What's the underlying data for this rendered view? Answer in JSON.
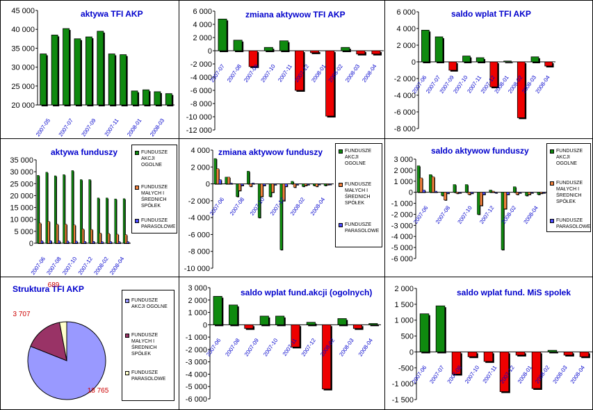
{
  "colors": {
    "green": "#0f8a0f",
    "red": "#ee0000",
    "orange": "#f0803c",
    "blue": "#4d4dff",
    "periwinkle": "#9999ff",
    "maroon": "#993366",
    "cream": "#ffffcc",
    "title": "#0000cc",
    "date": "#0000cc"
  },
  "fund_legend": [
    "FUNDUSZE\nAKCJI\nOGOLNE",
    "FUNDUSZE\nMAŁYCH I\nŚREDNICH\nSPÓŁEK",
    "FUNDUSZE\nPARASOLOWE"
  ],
  "pie_legend": [
    "FUNDUSZE\nAKCJI OGOLNE",
    "FUNDUSZE\nMAŁYCH I\nŚREDNICH\nSPÓŁEK",
    "FUNDUSZE\nPARASOLOWE"
  ],
  "chart_data": [
    {
      "id": "c1",
      "type": "bar",
      "title": "aktywa TFI AKP",
      "ylim": [
        20000,
        45000
      ],
      "yticks": [
        "20 000",
        "25 000",
        "30 000",
        "35 000",
        "40 000",
        "45 000"
      ],
      "ytick_values": [
        20000,
        25000,
        30000,
        35000,
        40000,
        45000
      ],
      "xlabels": [
        "2007-05",
        "2007-07",
        "2007-09",
        "2007-11",
        "2008-01",
        "2008-03"
      ],
      "series": [
        {
          "name": "aktywa",
          "values": [
            33500,
            38500,
            40200,
            37500,
            38000,
            39500,
            33500,
            33300,
            23700,
            24000,
            23500,
            23000
          ]
        }
      ]
    },
    {
      "id": "c2",
      "type": "bar",
      "title": "zmiana aktywow TFI AKP",
      "ylim": [
        -12000,
        6000
      ],
      "yticks": [
        "-12 000",
        "-10 000",
        "-8 000",
        "-6 000",
        "-4 000",
        "-2 000",
        "0",
        "2 000",
        "4 000",
        "6 000"
      ],
      "ytick_values": [
        -12000,
        -10000,
        -8000,
        -6000,
        -4000,
        -2000,
        0,
        2000,
        4000,
        6000
      ],
      "xlabels": [
        "2007-07",
        "2007-08",
        "2007-09",
        "2007-10",
        "2007-11",
        "2007-12",
        "2008-01",
        "2008-02",
        "2008-03",
        "2008-04"
      ],
      "series": [
        {
          "name": "zmiana",
          "values": [
            4800,
            1600,
            -2400,
            500,
            1500,
            -6000,
            -300,
            -9900,
            500,
            -500,
            -500
          ]
        }
      ]
    },
    {
      "id": "c3",
      "type": "bar",
      "title": "saldo wplat TFI AKP",
      "ylim": [
        -8000,
        6000
      ],
      "yticks": [
        "-8 000",
        "-6 000",
        "-4 000",
        "-2 000",
        "0",
        "2 000",
        "4 000",
        "6 000"
      ],
      "ytick_values": [
        -8000,
        -6000,
        -4000,
        -2000,
        0,
        2000,
        4000,
        6000
      ],
      "xlabels": [
        "2007-06",
        "2007-07",
        "2007-09",
        "2007-10",
        "2007-11",
        "2007-12",
        "2008-01",
        "2008-02",
        "2008-03",
        "2008-04"
      ],
      "series": [
        {
          "name": "saldo",
          "values": [
            3800,
            3000,
            -1000,
            700,
            500,
            -3000,
            100,
            -6700,
            600,
            -500
          ]
        }
      ]
    },
    {
      "id": "c4",
      "type": "groupbar",
      "title": "aktywa funduszy",
      "ylim": [
        0,
        35000
      ],
      "yticks": [
        "0",
        "5 000",
        "10 000",
        "15 000",
        "20 000",
        "25 000",
        "30 000",
        "35 000"
      ],
      "ytick_values": [
        0,
        5000,
        10000,
        15000,
        20000,
        25000,
        30000,
        35000
      ],
      "xlabels": [
        "2007-06",
        "2007-08",
        "2007-10",
        "2007-12",
        "2008-02",
        "2008-04"
      ],
      "series": [
        {
          "name": "FUNDUSZE AKCJI OGOLNE",
          "values": [
            28500,
            29800,
            28300,
            28800,
            30500,
            26700,
            26700,
            19000,
            19000,
            18600,
            18700
          ]
        },
        {
          "name": "FUNDUSZE MAŁYCH I ŚREDNICH SPÓŁEK",
          "values": [
            8500,
            9200,
            8000,
            8000,
            7700,
            6000,
            5800,
            4300,
            4100,
            3800,
            3600
          ]
        },
        {
          "name": "FUNDUSZE PARASOLOWE",
          "values": [
            1000,
            1100,
            1000,
            900,
            900,
            800,
            800,
            700,
            700,
            700,
            700
          ]
        }
      ]
    },
    {
      "id": "c5",
      "type": "groupbar",
      "title": "zmiana aktywow funduszy",
      "ylim": [
        -10000,
        4000
      ],
      "yticks": [
        "-10 000",
        "-8 000",
        "-6 000",
        "-4 000",
        "-2 000",
        "0",
        "2 000",
        "4 000"
      ],
      "ytick_values": [
        -10000,
        -8000,
        -6000,
        -4000,
        -2000,
        0,
        2000,
        4000
      ],
      "xlabels": [
        "2007-06",
        "2007-08",
        "2007-10",
        "2007-12",
        "2008-02",
        "2008-04"
      ],
      "series": [
        {
          "name": "FUNDUSZE AKCJI OGOLNE",
          "values": [
            3000,
            800,
            -1500,
            1500,
            -4000,
            -1500,
            -7800,
            300,
            -300,
            -200,
            -200
          ]
        },
        {
          "name": "FUNDUSZE MAŁYCH I ŚREDNICH SPÓŁEK",
          "values": [
            1800,
            800,
            -800,
            -300,
            -1500,
            -1000,
            -2000,
            -400,
            -200,
            -300,
            -100
          ]
        },
        {
          "name": "FUNDUSZE PARASOLOWE",
          "values": [
            500,
            100,
            -200,
            100,
            -200,
            -100,
            -300,
            -100,
            -100,
            -50,
            -50
          ]
        }
      ]
    },
    {
      "id": "c6",
      "type": "groupbar",
      "title": "saldo aktywow funduszy",
      "ylim": [
        -6000,
        3000
      ],
      "yticks": [
        "-6 000",
        "-5 000",
        "-4 000",
        "-3 000",
        "-2 000",
        "-1 000",
        "0",
        "1 000",
        "2 000",
        "3 000"
      ],
      "ytick_values": [
        -6000,
        -5000,
        -4000,
        -3000,
        -2000,
        -1000,
        0,
        1000,
        2000,
        3000
      ],
      "xlabels": [
        "2007-06",
        "2007-08",
        "2007-10",
        "2007-12",
        "2008-02",
        "2008-04"
      ],
      "series": [
        {
          "name": "FUNDUSZE AKCJI OGOLNE",
          "values": [
            2400,
            1600,
            -300,
            700,
            700,
            -2000,
            200,
            -5200,
            500,
            -300,
            -200
          ]
        },
        {
          "name": "FUNDUSZE MAŁYCH I ŚREDNICH SPÓŁEK",
          "values": [
            1300,
            1400,
            -700,
            -100,
            -200,
            -1200,
            100,
            -1500,
            -200,
            -200,
            -100
          ]
        },
        {
          "name": "FUNDUSZE PARASOLOWE",
          "values": [
            200,
            100,
            -100,
            0,
            -100,
            -200,
            0,
            -200,
            -50,
            -50,
            -50
          ]
        }
      ]
    },
    {
      "id": "c7",
      "type": "pie",
      "title": "Struktura TFI AKP",
      "categories": [
        "FUNDUSZE AKCJI OGOLNE",
        "FUNDUSZE MAŁYCH I ŚREDNICH SPÓŁEK",
        "FUNDUSZE PARASOLOWE"
      ],
      "values": [
        18765,
        3707,
        689
      ],
      "labels": [
        "18 765",
        "3 707",
        "689"
      ]
    },
    {
      "id": "c8",
      "type": "bar",
      "title": "saldo wplat fund.akcji (ogolnych)",
      "ylim": [
        -6000,
        3000
      ],
      "yticks": [
        "-6 000",
        "-5 000",
        "-4 000",
        "-3 000",
        "-2 000",
        "-1 000",
        "0",
        "1 000",
        "2 000",
        "3 000"
      ],
      "ytick_values": [
        -6000,
        -5000,
        -4000,
        -3000,
        -2000,
        -1000,
        0,
        1000,
        2000,
        3000
      ],
      "xlabels": [
        "2007-06",
        "2007-08",
        "2007-09",
        "2007-10",
        "2007-11",
        "2007-12",
        "2008-02",
        "2008-03",
        "2008-04"
      ],
      "series": [
        {
          "name": "saldo",
          "values": [
            2300,
            1600,
            -300,
            700,
            700,
            -1800,
            200,
            -5200,
            500,
            -300,
            100
          ]
        }
      ]
    },
    {
      "id": "c9",
      "type": "bar",
      "title": "saldo wplat fund. MiS spolek",
      "ylim": [
        -1500,
        2000
      ],
      "yticks": [
        "-1 500",
        "-1 000",
        "-500",
        "0",
        "500",
        "1 000",
        "1 500",
        "2 000"
      ],
      "ytick_values": [
        -1500,
        -1000,
        -500,
        0,
        500,
        1000,
        1500,
        2000
      ],
      "xlabels": [
        "2007-06",
        "2007-07",
        "2007-08",
        "2007-10",
        "2007-11",
        "2007-12",
        "2008-01",
        "2008-02",
        "2008-03",
        "2008-04"
      ],
      "series": [
        {
          "name": "saldo",
          "values": [
            1200,
            1450,
            -700,
            -150,
            -300,
            -1250,
            -100,
            -1150,
            50,
            -100,
            -150
          ]
        }
      ]
    }
  ]
}
